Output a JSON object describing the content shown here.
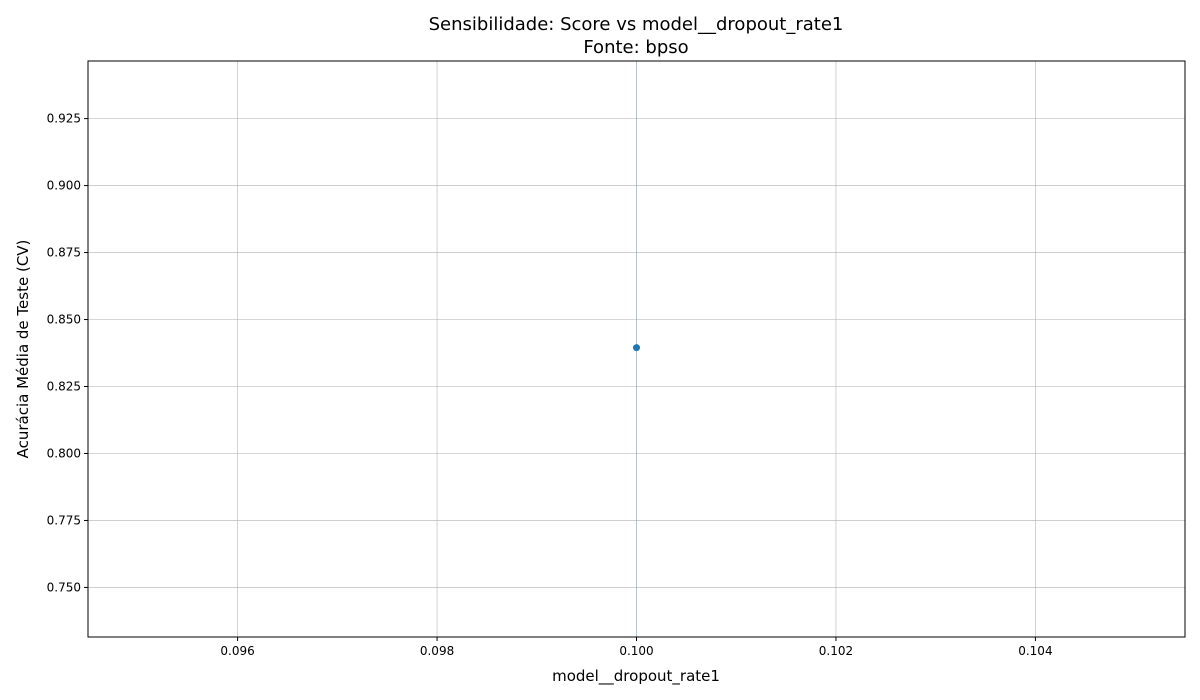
{
  "chart_data": {
    "type": "scatter",
    "title": "Sensibilidade: Score vs model__dropout_rate1",
    "subtitle": "Fonte: bpso",
    "xlabel": "model__dropout_rate1",
    "ylabel": "Acurácia Média de Teste (CV)",
    "xlim": [
      0.0945,
      0.1055
    ],
    "ylim": [
      0.7315,
      0.9465
    ],
    "xticks": [
      0.096,
      0.098,
      0.1,
      0.102,
      0.104
    ],
    "xtick_labels": [
      "0.096",
      "0.098",
      "0.100",
      "0.102",
      "0.104"
    ],
    "yticks": [
      0.75,
      0.775,
      0.8,
      0.825,
      0.85,
      0.875,
      0.9,
      0.925
    ],
    "ytick_labels": [
      "0.750",
      "0.775",
      "0.800",
      "0.825",
      "0.850",
      "0.875",
      "0.900",
      "0.925"
    ],
    "grid": true,
    "color": "#1f77b4",
    "points": [
      {
        "x": 0.1,
        "y": 0.8395
      }
    ],
    "errorbars": [
      {
        "x": 0.1,
        "low": 0.7315,
        "high": 0.9465
      }
    ]
  }
}
